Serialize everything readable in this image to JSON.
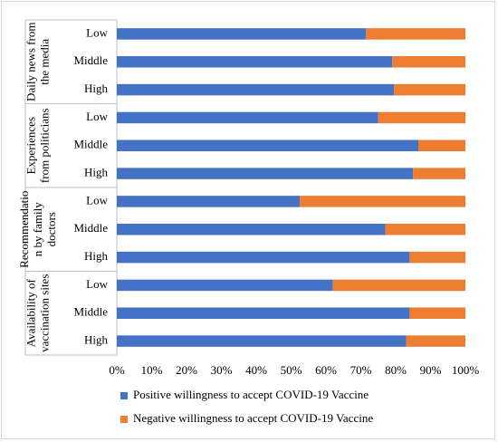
{
  "chart_data": {
    "type": "bar",
    "orientation": "horizontal",
    "stacked": "percent",
    "groups": [
      {
        "label_lines": [
          "Daily news from",
          "the media"
        ],
        "categories": [
          "Low",
          "Middle",
          "High"
        ]
      },
      {
        "label_lines": [
          "Experiences",
          "from politicians"
        ],
        "categories": [
          "Low",
          "Middle",
          "High"
        ]
      },
      {
        "label_lines": [
          "Recommendatio",
          "n by family",
          "doctors"
        ],
        "categories": [
          "Low",
          "Middle",
          "High"
        ]
      },
      {
        "label_lines": [
          "Availability of",
          "vaccination sites"
        ],
        "categories": [
          "Low",
          "Middle",
          "High"
        ]
      }
    ],
    "series": [
      {
        "name": "Positive willingness to accept COVID-19 Vaccine",
        "color": "#4472c4",
        "values": [
          71.5,
          79,
          79.5,
          75,
          86.5,
          85,
          52.5,
          77,
          84,
          62,
          84,
          83
        ]
      },
      {
        "name": "Negative willingness to accept COVID-19 Vaccine",
        "color": "#ed7d31",
        "values": [
          28.5,
          21,
          20.5,
          25,
          13.5,
          15,
          47.5,
          23,
          16,
          38,
          16,
          17
        ]
      }
    ],
    "xlim": [
      0,
      100
    ],
    "x_ticks": [
      "0%",
      "10%",
      "20%",
      "30%",
      "40%",
      "50%",
      "60%",
      "70%",
      "80%",
      "90%",
      "100%"
    ],
    "grid": false,
    "legend_position": "bottom"
  }
}
